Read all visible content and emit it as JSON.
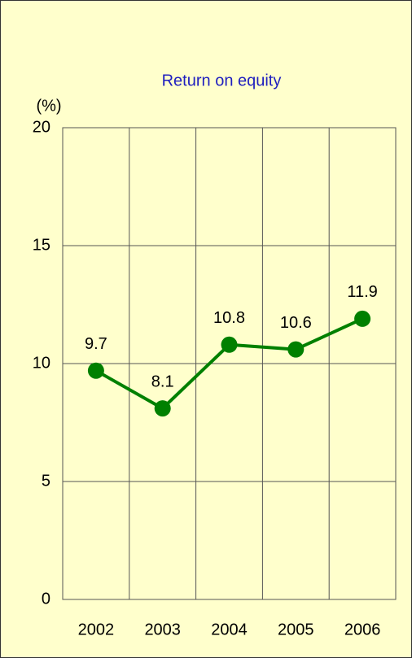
{
  "chart_data": {
    "type": "line",
    "title": "Return on equity",
    "y_label": "(%)",
    "categories": [
      "2002",
      "2003",
      "2004",
      "2005",
      "2006"
    ],
    "values": [
      9.7,
      8.1,
      10.8,
      10.6,
      11.9
    ],
    "color": "#008000",
    "ylim": [
      0,
      20
    ],
    "yticks": [
      0,
      5,
      10,
      15,
      20
    ],
    "grid": true,
    "data_labels": true
  }
}
